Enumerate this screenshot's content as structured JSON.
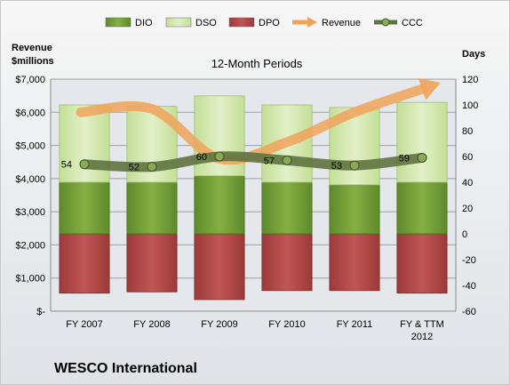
{
  "company": "WESCO International",
  "chart_data": {
    "type": "bar",
    "subtitle": "12-Month Periods",
    "y_left_label_lines": [
      "Revenue",
      "$millions"
    ],
    "y_right_label": "Days",
    "categories": [
      "FY 2007",
      "FY 2008",
      "FY 2009",
      "FY 2010",
      "FY 2011",
      "FY & TTM 2012"
    ],
    "category_lines": [
      [
        "FY 2007"
      ],
      [
        "FY 2008"
      ],
      [
        "FY 2009"
      ],
      [
        "FY 2010"
      ],
      [
        "FY 2011"
      ],
      [
        "FY & TTM",
        "2012"
      ]
    ],
    "left_axis": {
      "min": 0,
      "max": 7000,
      "step": 1000,
      "tick_labels": [
        "$-",
        "$1,000",
        "$2,000",
        "$3,000",
        "$4,000",
        "$5,000",
        "$6,000",
        "$7,000"
      ]
    },
    "right_axis": {
      "min": -60,
      "max": 120,
      "step": 20,
      "tick_labels": [
        "-60",
        "-40",
        "-20",
        "0",
        "20",
        "40",
        "60",
        "80",
        "100",
        "120"
      ]
    },
    "legend": [
      {
        "name": "DIO",
        "kind": "box",
        "color": "#77a03a"
      },
      {
        "name": "DSO",
        "kind": "box",
        "color": "#d6e8b0"
      },
      {
        "name": "DPO",
        "kind": "box",
        "color": "#b84a4a"
      },
      {
        "name": "Revenue",
        "kind": "arrow",
        "color": "#f0a35a"
      },
      {
        "name": "CCC",
        "kind": "dotline",
        "color": "#5f7340"
      }
    ],
    "series": [
      {
        "name": "DIO",
        "axis": "right",
        "values": [
          40,
          40,
          45,
          40,
          38,
          40
        ]
      },
      {
        "name": "DSO",
        "axis": "right",
        "values": [
          60,
          59,
          62,
          60,
          60,
          62
        ]
      },
      {
        "name": "DPO",
        "axis": "right",
        "values": [
          -46,
          -45,
          -51,
          -44,
          -44,
          -46
        ]
      },
      {
        "name": "Revenue",
        "axis": "left",
        "values": [
          6000,
          6100,
          4600,
          5100,
          6000,
          6700
        ]
      },
      {
        "name": "CCC",
        "axis": "right",
        "values": [
          54,
          52,
          60,
          57,
          53,
          59
        ],
        "labels": [
          "54",
          "52",
          "60",
          "57",
          "53",
          "59"
        ]
      }
    ],
    "colors": {
      "dio": "#77a03a",
      "dso": "#d6e8b0",
      "dpo": "#b84a4a",
      "revenue": "#f0a35a",
      "ccc": "#5f7340",
      "grid": "#a0a0a0"
    },
    "grid": true,
    "legend_position": "top"
  }
}
